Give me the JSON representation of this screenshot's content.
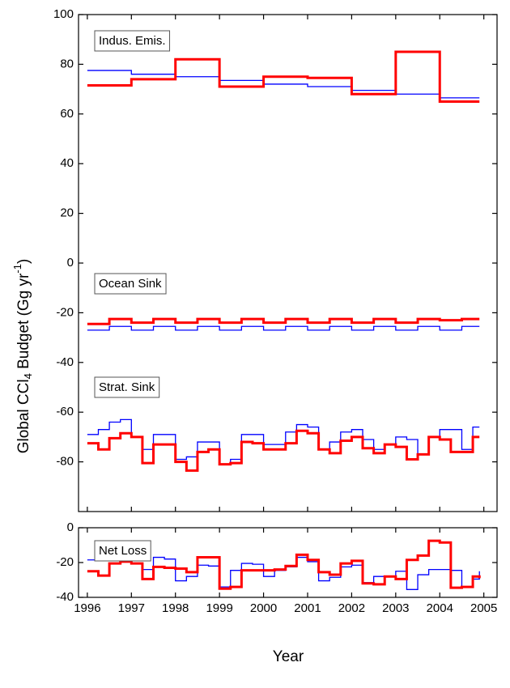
{
  "chart_data": [
    {
      "type": "line",
      "step": true,
      "ylabel": [
        "Global CCl",
        "4",
        " Budget (Gg yr",
        "-1",
        ")"
      ],
      "xlim": [
        1995.8,
        2005.3
      ],
      "xticks": [
        1996,
        1997,
        1998,
        1999,
        2000,
        2001,
        2002,
        2003,
        2004,
        2005
      ],
      "ylim": [
        -100,
        100
      ],
      "yticks": [
        -80,
        -60,
        -40,
        -20,
        0,
        20,
        40,
        60,
        80,
        100
      ],
      "groups": [
        {
          "label": "Indus. Emis.",
          "x": [
            1996,
            1997,
            1998,
            1999,
            2000,
            2001,
            2002,
            2003,
            2004,
            2004.9
          ],
          "series": [
            {
              "color": "#0000ff",
              "values": [
                77.5,
                76,
                75,
                73.5,
                72,
                71,
                69.5,
                68,
                66.5,
                66.5
              ]
            },
            {
              "color": "#ff0000",
              "values": [
                71.5,
                74,
                82,
                71,
                75,
                74.5,
                68,
                85,
                65,
                65
              ]
            }
          ]
        },
        {
          "label": "Ocean Sink",
          "x": [
            1996,
            1996.5,
            1997,
            1997.5,
            1998,
            1998.5,
            1999,
            1999.5,
            2000,
            2000.5,
            2001,
            2001.5,
            2002,
            2002.5,
            2003,
            2003.5,
            2004,
            2004.5,
            2004.9
          ],
          "series": [
            {
              "color": "#0000ff",
              "values": [
                -27,
                -25.5,
                -27,
                -25.5,
                -27,
                -25.5,
                -27,
                -25.5,
                -27,
                -25.5,
                -27,
                -25.5,
                -27,
                -25.5,
                -27,
                -25.5,
                -27,
                -25.5,
                -25.5
              ]
            },
            {
              "color": "#ff0000",
              "values": [
                -24.5,
                -22.5,
                -24,
                -22.5,
                -24,
                -22.5,
                -24,
                -22.5,
                -24,
                -22.5,
                -24,
                -22.5,
                -24,
                -22.5,
                -24,
                -22.5,
                -23,
                -22.5,
                -22.5
              ]
            }
          ]
        },
        {
          "label": "Strat. Sink",
          "x": [
            1996,
            1996.25,
            1996.5,
            1996.75,
            1997,
            1997.25,
            1997.5,
            1997.75,
            1998,
            1998.25,
            1998.5,
            1998.75,
            1999,
            1999.25,
            1999.5,
            1999.75,
            2000,
            2000.25,
            2000.5,
            2000.75,
            2001,
            2001.25,
            2001.5,
            2001.75,
            2002,
            2002.25,
            2002.5,
            2002.75,
            2003,
            2003.25,
            2003.5,
            2003.75,
            2004,
            2004.25,
            2004.5,
            2004.75,
            2004.9
          ],
          "series": [
            {
              "color": "#0000ff",
              "values": [
                -69,
                -67,
                -64,
                -63,
                -70,
                -75,
                -69,
                -69,
                -79,
                -78,
                -72,
                -72,
                -81,
                -79,
                -69,
                -69,
                -73,
                -73,
                -68,
                -65,
                -66,
                -75,
                -72,
                -68,
                -67,
                -71,
                -75,
                -73,
                -70,
                -71,
                -77,
                -70,
                -67,
                -67,
                -75,
                -66,
                -66
              ]
            },
            {
              "color": "#ff0000",
              "values": [
                -72.5,
                -75,
                -70.5,
                -68.5,
                -70,
                -80.5,
                -73,
                -73,
                -80,
                -83.5,
                -76,
                -75,
                -81,
                -80.5,
                -72,
                -72.5,
                -75,
                -75,
                -72.5,
                -67.5,
                -68.5,
                -75,
                -76.5,
                -71.5,
                -70,
                -74.5,
                -76.5,
                -73,
                -74,
                -79,
                -77,
                -70,
                -71,
                -76,
                -76,
                -70,
                -70
              ]
            }
          ]
        }
      ]
    },
    {
      "type": "line",
      "step": true,
      "xlabel": "Year",
      "xlim": [
        1995.8,
        2005.3
      ],
      "xticks": [
        1996,
        1997,
        1998,
        1999,
        2000,
        2001,
        2002,
        2003,
        2004,
        2005
      ],
      "ylim": [
        -40,
        0
      ],
      "yticks": [
        -40,
        -20,
        0
      ],
      "groups": [
        {
          "label": "Net Loss",
          "x": [
            1996,
            1996.25,
            1996.5,
            1996.75,
            1997,
            1997.25,
            1997.5,
            1997.75,
            1998,
            1998.25,
            1998.5,
            1998.75,
            1999,
            1999.25,
            1999.5,
            1999.75,
            2000,
            2000.25,
            2000.5,
            2000.75,
            2001,
            2001.25,
            2001.5,
            2001.75,
            2002,
            2002.25,
            2002.5,
            2002.75,
            2003,
            2003.25,
            2003.5,
            2003.75,
            2004,
            2004.25,
            2004.5,
            2004.75,
            2004.9
          ],
          "series": [
            {
              "color": "#0000ff",
              "values": [
                -18.5,
                -15.5,
                -11,
                -11,
                -20.5,
                -24,
                -17,
                -18,
                -30.5,
                -28,
                -21.5,
                -22,
                -34,
                -24.5,
                -20.5,
                -21,
                -28,
                -24.5,
                -22.5,
                -17,
                -19.5,
                -30.5,
                -28.5,
                -22.5,
                -21.5,
                -31.5,
                -28,
                -28,
                -25,
                -35.5,
                -27,
                -24,
                -24,
                -24.5,
                -34,
                -29.5,
                -25
              ]
            },
            {
              "color": "#ff0000",
              "values": [
                -25,
                -27.5,
                -20.5,
                -19.5,
                -20.5,
                -29.5,
                -22.5,
                -23,
                -23.5,
                -25.5,
                -17,
                -17,
                -35,
                -34,
                -24.5,
                -24.5,
                -24.5,
                -24,
                -22,
                -15.5,
                -18.5,
                -25.5,
                -27,
                -20.5,
                -19,
                -32,
                -32.5,
                -28,
                -29.5,
                -18.5,
                -16,
                -7.5,
                -8.5,
                -34.5,
                -34,
                -28,
                -29
              ]
            }
          ]
        }
      ]
    }
  ]
}
